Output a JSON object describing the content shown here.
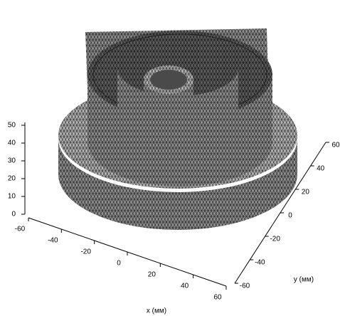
{
  "chart_data": {
    "type": "mesh3d",
    "xlabel": "x (мм)",
    "ylabel": "y (мм)",
    "xlim": [
      -60,
      60
    ],
    "xticks": [
      -60,
      -40,
      -20,
      0,
      20,
      40,
      60
    ],
    "ylim": [
      -60,
      60
    ],
    "yticks": [
      -60,
      -40,
      -20,
      0,
      20,
      40,
      60
    ],
    "zlim": [
      0,
      50
    ],
    "zticks": [
      0,
      10,
      20,
      30,
      40,
      50
    ],
    "color": "#8c8c8c"
  }
}
